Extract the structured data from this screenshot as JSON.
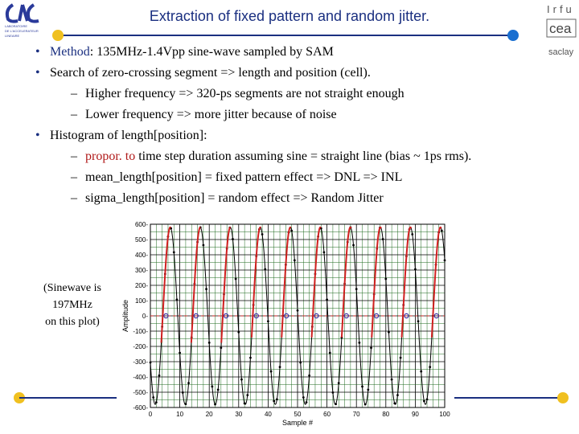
{
  "header": {
    "title": "Extraction of fixed pattern and random jitter.",
    "logo_left_text": "LAL",
    "logo_right_top": "Irfu",
    "logo_right_mid": "cea",
    "logo_right_bottom": "saclay"
  },
  "bullets": [
    {
      "label": "Method",
      "text": ": 135MHz-1.4Vpp sine-wave sampled by SAM"
    },
    {
      "text": "Search of zero-crossing segment => length and position (cell)."
    },
    {
      "text": "Higher frequency => 320-ps segments are not straight enough",
      "sub": true
    },
    {
      "text": "Lower frequency => more jitter because of noise",
      "sub": true
    },
    {
      "text": "Histogram of length[position]:"
    },
    {
      "red_prefix": "propor. to",
      "text": " time step duration assuming sine = straight line (bias ~ 1ps rms).",
      "sub": true
    },
    {
      "text": "mean_length[position] = fixed pattern effect => DNL => INL",
      "sub": true
    },
    {
      "text": "sigma_length[position] = random effect => Random Jitter",
      "sub": true
    }
  ],
  "note": {
    "line1": "(Sinewave is",
    "line2": "197MHz",
    "line3": "on this plot)"
  },
  "colors": {
    "title": "#1a2f80",
    "accent_red": "#b01818",
    "rule_blue": "#1a2f80",
    "dot_yellow": "#f0c020"
  },
  "chart_data": {
    "type": "line",
    "xlabel": "Sample #",
    "ylabel": "Amplitude",
    "xlim": [
      0,
      100
    ],
    "ylim": [
      -600,
      600
    ],
    "x_ticks": [
      0,
      10,
      20,
      30,
      40,
      50,
      60,
      70,
      80,
      90,
      100
    ],
    "y_ticks": [
      600,
      500,
      400,
      300,
      200,
      100,
      0,
      -100,
      -200,
      -300,
      -400,
      -500,
      -600
    ],
    "sine": {
      "amplitude": 580,
      "period_samples": 10.2,
      "phase_samples": 4.2
    },
    "zero_crossings_marked": [
      5.3,
      15.5,
      25.7,
      36.0,
      46.2,
      56.4,
      66.6,
      76.8,
      87.0,
      97.2
    ]
  }
}
